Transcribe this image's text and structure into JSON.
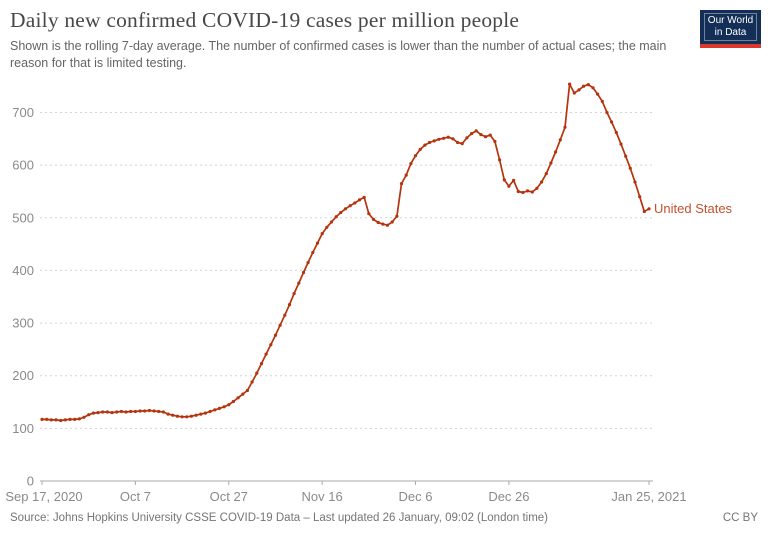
{
  "header": {
    "title": "Daily new confirmed COVID-19 cases per million people",
    "subtitle": "Shown is the rolling 7-day average. The number of confirmed cases is lower than the number of actual cases; the main reason for that is limited testing.",
    "logo": {
      "line1": "Our World",
      "line2": "in Data",
      "bg_color": "#132f57",
      "stripe_color": "#d9382e"
    }
  },
  "footer": {
    "source": "Source: Johns Hopkins University CSSE COVID-19 Data – Last updated 26 January, 09:02 (London time)",
    "license": "CC BY"
  },
  "colors": {
    "line": "#b5330d",
    "entity_label": "#c2512f",
    "grid": "#d4d4d4",
    "axis": "#a8a8a8",
    "tick_text": "#8a8a8a"
  },
  "chart_data": {
    "type": "line",
    "title": "Daily new confirmed COVID-19 cases per million people",
    "subtitle": "Rolling 7-day average",
    "xlabel": "",
    "ylabel": "",
    "grid": "horizontal-dashed",
    "legend_position": "end-of-line",
    "ylim": [
      0,
      770
    ],
    "x_range": [
      "Sep 17, 2020",
      "Jan 25, 2021"
    ],
    "y_ticks": [
      0,
      100,
      200,
      300,
      400,
      500,
      600,
      700
    ],
    "x_ticks": [
      {
        "label": "Sep 17, 2020",
        "day": 0
      },
      {
        "label": "Oct 7",
        "day": 20
      },
      {
        "label": "Oct 27",
        "day": 40
      },
      {
        "label": "Nov 16",
        "day": 60
      },
      {
        "label": "Dec 6",
        "day": 80
      },
      {
        "label": "Dec 26",
        "day": 100
      },
      {
        "label": "Jan 25, 2021",
        "day": 130
      }
    ],
    "series": [
      {
        "name": "United States",
        "unit": "new confirmed cases per million (7-day avg)",
        "values": [
          117,
          117,
          116,
          116,
          115,
          116,
          117,
          117,
          118,
          121,
          126,
          129,
          130,
          131,
          131,
          130,
          131,
          132,
          131,
          132,
          132,
          133,
          133,
          134,
          133,
          132,
          131,
          127,
          125,
          123,
          122,
          122,
          123,
          125,
          127,
          129,
          132,
          135,
          138,
          141,
          145,
          151,
          158,
          165,
          172,
          188,
          205,
          223,
          241,
          259,
          277,
          296,
          315,
          335,
          356,
          376,
          396,
          415,
          434,
          452,
          470,
          482,
          492,
          502,
          510,
          517,
          523,
          528,
          534,
          539,
          508,
          497,
          491,
          488,
          486,
          492,
          503,
          565,
          581,
          603,
          618,
          630,
          638,
          643,
          646,
          649,
          651,
          653,
          650,
          643,
          641,
          652,
          660,
          665,
          658,
          654,
          657,
          645,
          610,
          572,
          560,
          571,
          550,
          548,
          551,
          549,
          556,
          568,
          584,
          604,
          625,
          648,
          672,
          754,
          737,
          743,
          750,
          753,
          747,
          735,
          721,
          700,
          682,
          662,
          640,
          617,
          594,
          568,
          540,
          512,
          517
        ]
      }
    ]
  }
}
